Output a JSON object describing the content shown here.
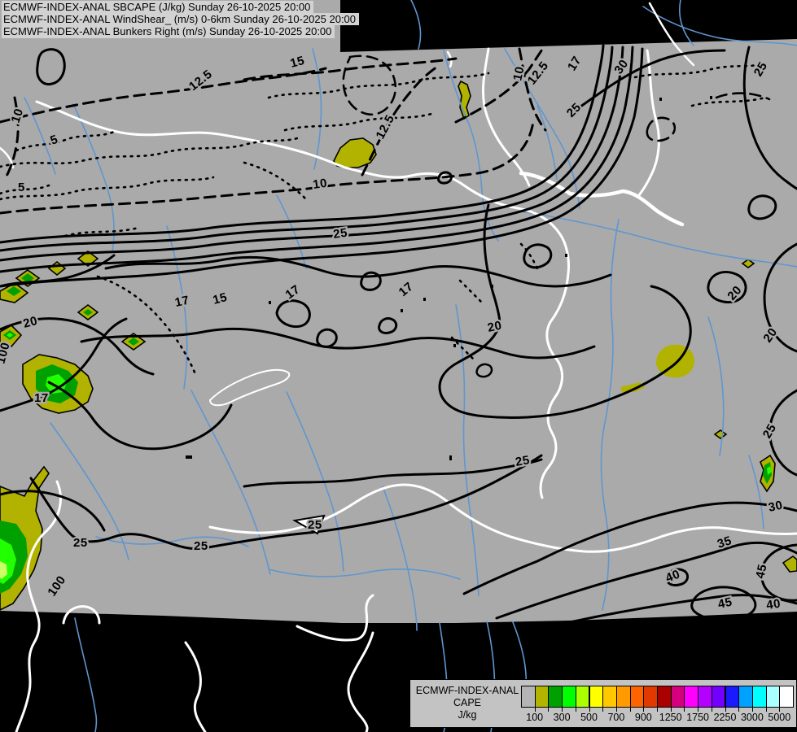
{
  "titles": [
    {
      "text": "ECMWF-INDEX-ANAL SBCAPE (J/kg) Sunday 26-10-2025 20:00"
    },
    {
      "text": "ECMWF-INDEX-ANAL WindShear_ (m/s) 0-6km Sunday 26-10-2025 20:00"
    },
    {
      "text": "ECMWF-INDEX-ANAL Bunkers Right (m/s) Sunday 26-10-2025 20:00"
    }
  ],
  "legend": {
    "line1": "ECMWF-INDEX-ANAL",
    "line2": "CAPE",
    "line3": "J/kg",
    "ticks": [
      "100",
      "300",
      "500",
      "700",
      "900",
      "1250",
      "1750",
      "2250",
      "3000",
      "5000"
    ],
    "swatches": [
      "#b4b4b4",
      "#b4b400",
      "#00a000",
      "#00ff00",
      "#aaff00",
      "#ffff00",
      "#ffc800",
      "#ff9b00",
      "#ff6400",
      "#e13900",
      "#aa0000",
      "#d4007d",
      "#ff00ff",
      "#b400ff",
      "#7300ff",
      "#1a1aff",
      "#00a2ff",
      "#00ffff",
      "#aaffff",
      "#ffffff"
    ]
  },
  "map": {
    "colors": {
      "background": "#aaaaaa",
      "outside_domain": "#000000",
      "river": "#5f96d0",
      "border": "#ffffff",
      "contour": "#000000",
      "cape_olive": "#b2b200",
      "cape_green": "#00a000",
      "cape_bright_green": "#22ff00",
      "cape_pale_core": "#ccff66"
    },
    "contour_labels": [
      {
        "t": "12.5"
      },
      {
        "t": "15"
      },
      {
        "t": "10"
      },
      {
        "t": "5"
      },
      {
        "t": "5"
      },
      {
        "t": "10"
      },
      {
        "t": "12.5"
      },
      {
        "t": "10"
      },
      {
        "t": "12.5"
      },
      {
        "t": "17"
      },
      {
        "t": "30"
      },
      {
        "t": "25"
      },
      {
        "t": "25"
      },
      {
        "t": "15"
      },
      {
        "t": "17"
      },
      {
        "t": "17"
      },
      {
        "t": "17"
      },
      {
        "t": "20"
      },
      {
        "t": "100"
      },
      {
        "t": "17"
      },
      {
        "t": "20"
      },
      {
        "t": "20"
      },
      {
        "t": "20"
      },
      {
        "t": "25"
      },
      {
        "t": "100"
      },
      {
        "t": "25"
      },
      {
        "t": "25"
      },
      {
        "t": "25"
      },
      {
        "t": "25"
      },
      {
        "t": "25"
      },
      {
        "t": "30"
      },
      {
        "t": "35"
      },
      {
        "t": "40"
      },
      {
        "t": "45"
      },
      {
        "t": "45"
      },
      {
        "t": "40"
      }
    ]
  }
}
